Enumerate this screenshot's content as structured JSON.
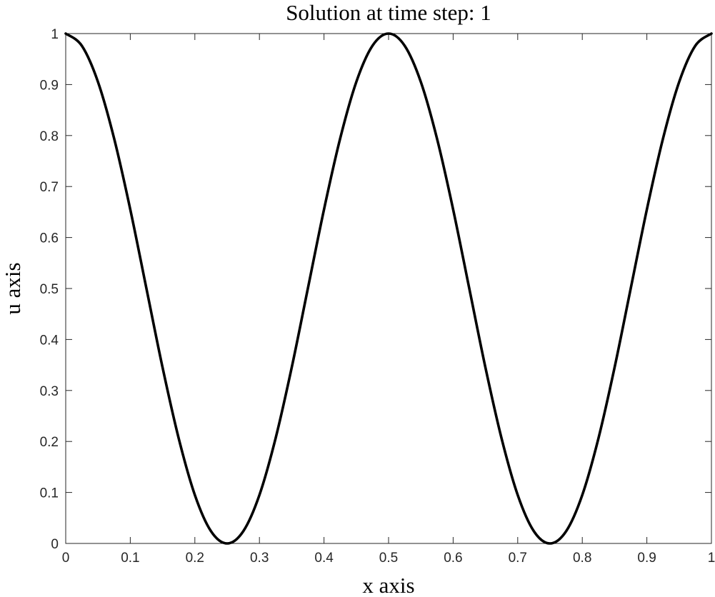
{
  "chart_data": {
    "type": "line",
    "title": "Solution at time step: 1",
    "xlabel": "x axis",
    "ylabel": "u axis",
    "xlim": [
      0,
      1
    ],
    "ylim": [
      0,
      1
    ],
    "x_ticks": [
      "0",
      "0.1",
      "0.2",
      "0.3",
      "0.4",
      "0.5",
      "0.6",
      "0.7",
      "0.8",
      "0.9",
      "1"
    ],
    "y_ticks": [
      "0",
      "0.1",
      "0.2",
      "0.3",
      "0.4",
      "0.5",
      "0.6",
      "0.7",
      "0.8",
      "0.9",
      "1"
    ],
    "grid": false,
    "line_color": "#000000",
    "series": [
      {
        "x": [
          0,
          0.025,
          0.05,
          0.075,
          0.1,
          0.125,
          0.15,
          0.175,
          0.2,
          0.225,
          0.25,
          0.275,
          0.3,
          0.325,
          0.35,
          0.375,
          0.4,
          0.425,
          0.45,
          0.475,
          0.5,
          0.525,
          0.55,
          0.575,
          0.6,
          0.625,
          0.65,
          0.675,
          0.7,
          0.725,
          0.75,
          0.775,
          0.8,
          0.825,
          0.85,
          0.875,
          0.9,
          0.925,
          0.95,
          0.975,
          1
        ],
        "y": [
          1,
          0.976,
          0.905,
          0.794,
          0.655,
          0.5,
          0.345,
          0.206,
          0.095,
          0.024,
          0,
          0.024,
          0.095,
          0.206,
          0.345,
          0.5,
          0.655,
          0.794,
          0.905,
          0.976,
          1,
          0.976,
          0.905,
          0.794,
          0.655,
          0.5,
          0.345,
          0.206,
          0.095,
          0.024,
          0,
          0.024,
          0.095,
          0.206,
          0.345,
          0.5,
          0.655,
          0.794,
          0.905,
          0.976,
          1
        ]
      }
    ]
  }
}
